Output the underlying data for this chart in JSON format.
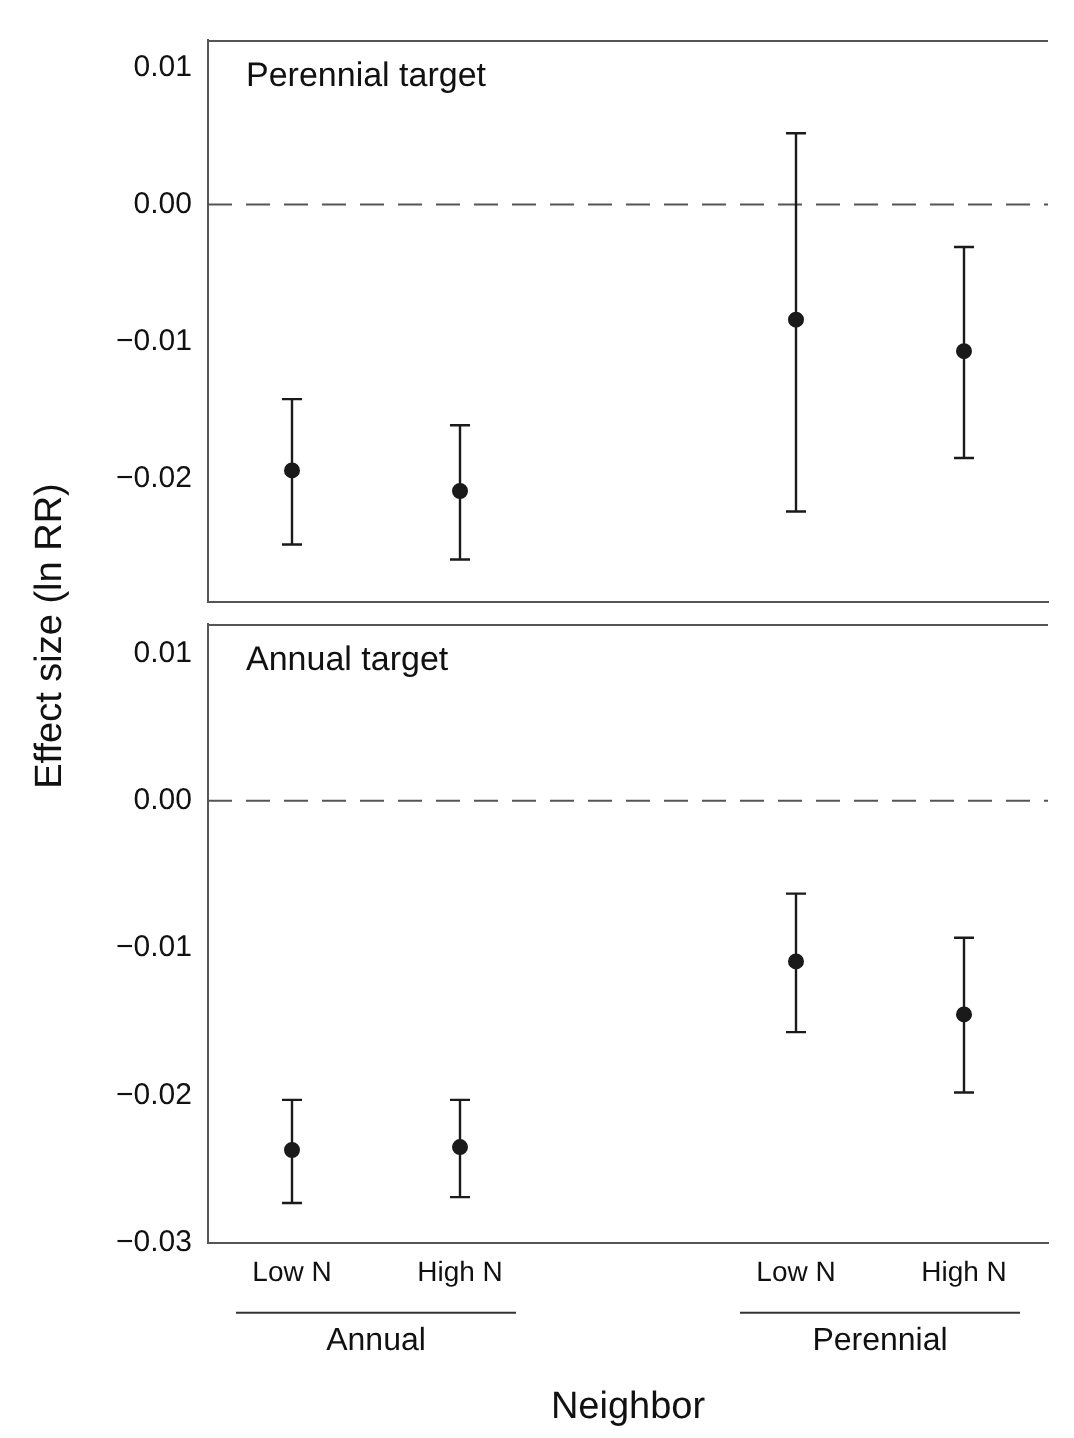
{
  "chart_data": [
    {
      "type": "scatter",
      "title": "Perennial target",
      "ylabel": "Effect size (ln RR)",
      "categories": [
        null,
        null,
        null,
        null,
        null
      ],
      "series": [
        {
          "color": "#1a1a1a",
          "values": [
            -0.0194,
            -0.0209,
            null,
            -0.0084,
            -0.0107
          ],
          "errors": [
            [
              -0.0248,
              -0.0142
            ],
            [
              -0.0259,
              -0.0161
            ],
            null,
            [
              -0.0224,
              0.0052
            ],
            [
              -0.0185,
              -0.0031
            ]
          ]
        }
      ],
      "ylim": [
        -0.029,
        0.012
      ],
      "yticks": [
        {
          "value": 0.01,
          "label": "0.01"
        },
        {
          "value": 0,
          "label": "0.00"
        },
        {
          "value": -0.01,
          "label": "−0.01"
        },
        {
          "value": -0.02,
          "label": "−0.02"
        }
      ],
      "ref_lines": [
        {
          "axis": "y",
          "value": 0,
          "line_style": "dashed",
          "color": "#555555"
        }
      ],
      "marker": "circle",
      "tick_labels": "y",
      "grid": false,
      "legend": false
    },
    {
      "type": "scatter",
      "title": "Annual target",
      "xlabel": "Neighbor",
      "categories": [
        "Low N",
        "High N",
        null,
        "Low N",
        "High N"
      ],
      "series": [
        {
          "color": "#1a1a1a",
          "values": [
            -0.0237,
            -0.0235,
            null,
            -0.0109,
            -0.0145
          ],
          "errors": [
            [
              -0.0273,
              -0.0203
            ],
            [
              -0.0269,
              -0.0203
            ],
            null,
            [
              -0.0157,
              -0.0063
            ],
            [
              -0.0198,
              -0.0093
            ]
          ]
        }
      ],
      "ylim": [
        -0.03,
        0.012
      ],
      "yticks": [
        {
          "value": 0.01,
          "label": "0.01"
        },
        {
          "value": 0,
          "label": "0.00"
        },
        {
          "value": -0.01,
          "label": "−0.01"
        },
        {
          "value": -0.02,
          "label": "−0.02"
        },
        {
          "value": -0.03,
          "label": "−0.03"
        }
      ],
      "ref_lines": [
        {
          "axis": "y",
          "value": 0,
          "line_style": "dashed",
          "color": "#555555"
        }
      ],
      "annotations": [
        "Annual",
        "Perennial"
      ],
      "marker": "circle",
      "grid": false,
      "legend": false
    }
  ]
}
